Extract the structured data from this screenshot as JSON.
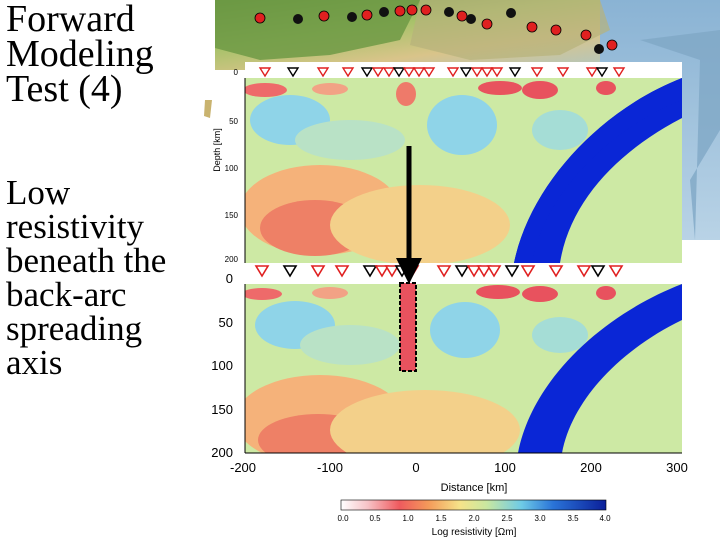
{
  "slide": {
    "title_lines": [
      "Forward",
      "Modeling",
      "Test (4)"
    ],
    "body_lines": [
      "Low",
      "resistivity",
      "beneath the",
      "back-arc",
      "spreading",
      "axis"
    ]
  },
  "figure": {
    "top_panel": {
      "y_axis_label": "Depth [km]",
      "y_ticks": [
        "0",
        "50",
        "100",
        "150",
        "200"
      ]
    },
    "bottom_panel": {
      "y_ticks": [
        "0",
        "50",
        "100",
        "150",
        "200"
      ],
      "x_ticks": [
        "-200",
        "-100",
        "0",
        "100",
        "200",
        "300"
      ],
      "x_axis_label": "Distance [km]"
    },
    "colorbar": {
      "ticks": [
        "0.0",
        "0.5",
        "1.0",
        "1.5",
        "2.0",
        "2.5",
        "3.0",
        "3.5",
        "4.0"
      ],
      "label": "Log resistivity [Ωm]"
    }
  },
  "colors": {
    "slab": "#0a26d6",
    "background_green": "#cde9a4",
    "low_resistivity_red": "#e8525e",
    "high_resistivity_blue": "#6cc3e0",
    "arrow": "#000000"
  }
}
